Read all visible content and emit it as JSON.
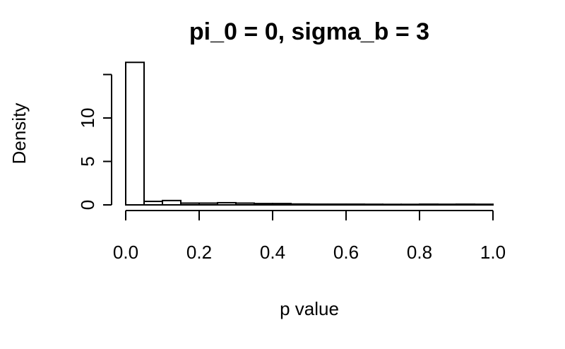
{
  "chart_data": {
    "type": "bar",
    "title": "pi_0 = 0, sigma_b = 3",
    "xlabel": "p value",
    "ylabel": "Density",
    "xlim": [
      0,
      1
    ],
    "ylim": [
      0,
      15
    ],
    "x_ticks": [
      "0.0",
      "0.2",
      "0.4",
      "0.6",
      "0.8",
      "1.0"
    ],
    "y_ticks": [
      "0",
      "5",
      "10"
    ],
    "bin_width": 0.05,
    "bins": [
      0.0,
      0.05,
      0.1,
      0.15,
      0.2,
      0.25,
      0.3,
      0.35,
      0.4,
      0.45,
      0.5,
      0.55,
      0.6,
      0.65,
      0.7,
      0.75,
      0.8,
      0.85,
      0.9,
      0.95
    ],
    "values": [
      16.4,
      0.4,
      0.5,
      0.2,
      0.2,
      0.25,
      0.2,
      0.15,
      0.15,
      0.1,
      0.08,
      0.08,
      0.08,
      0.07,
      0.06,
      0.06,
      0.08,
      0.07,
      0.08,
      0.07
    ],
    "grid": false,
    "legend": "none"
  }
}
